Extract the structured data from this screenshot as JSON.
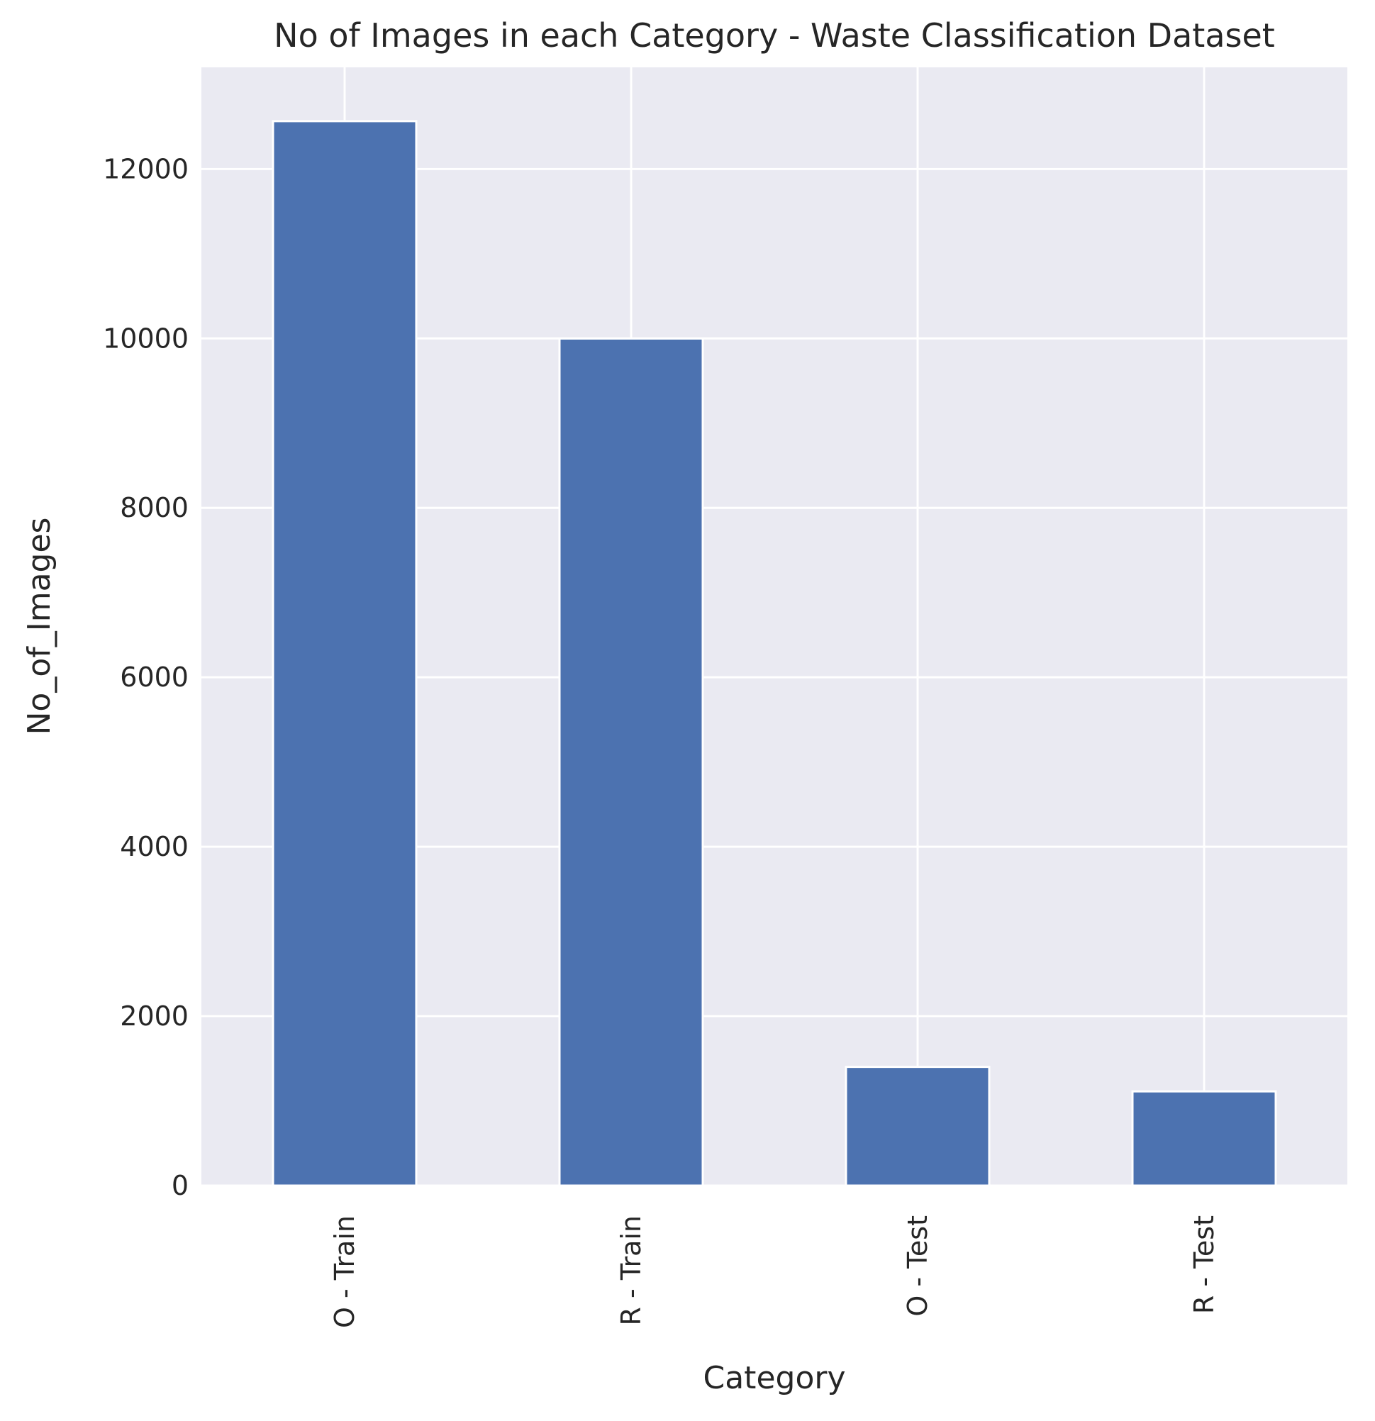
{
  "chart_data": {
    "type": "bar",
    "title": "No of Images in each Category - Waste Classification Dataset",
    "xlabel": "Category",
    "ylabel": "No_of_Images",
    "categories": [
      "O - Train",
      "R - Train",
      "O - Test",
      "R - Test"
    ],
    "values": [
      12565,
      9999,
      1401,
      1112
    ],
    "ylim": [
      0,
      13200
    ],
    "yticks": [
      "0",
      "2000",
      "4000",
      "6000",
      "8000",
      "10000",
      "12000"
    ],
    "grid": true,
    "x_tick_rotation": "vertical",
    "colors": {
      "bar": "#4c72b0",
      "plot_background": "#eaeaf2",
      "grid": "#ffffff",
      "text": "#262626"
    }
  }
}
